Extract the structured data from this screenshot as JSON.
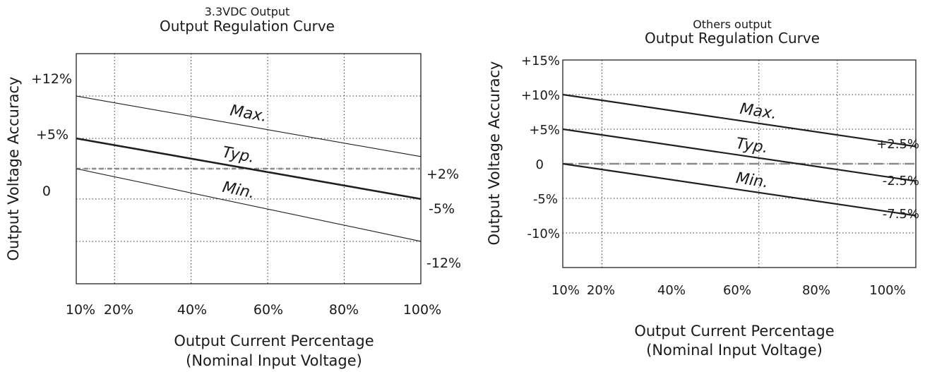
{
  "colors": {
    "line": "#1f1f1f",
    "dashed": "#8a8a8a",
    "grid": "#333333"
  },
  "charts": [
    {
      "title_line1": "3.3VDC Output",
      "title_line2": "Output Regulation Curve",
      "ylabel": "Output Voltage Accuracy",
      "xlabel_line1": "Output Current Percentage",
      "xlabel_line2": "(Nominal Input Voltage)",
      "x_tick_labels": [
        "10%",
        "20%",
        "40%",
        "60%",
        "80%",
        "100%"
      ],
      "y_tick_labels": [
        "+12%",
        "+5%",
        "0"
      ],
      "right_labels": [
        "+2%",
        "-5%",
        "-12%"
      ]
    },
    {
      "title_line1": "Others output",
      "title_line2": "Output Regulation Curve",
      "ylabel": "Output Voltage Accuracy",
      "xlabel_line1": "Output Current Percentage",
      "xlabel_line2": "(Nominal Input Voltage)",
      "x_tick_labels": [
        "10%",
        "20%",
        "40%",
        "60%",
        "80%",
        "100%"
      ],
      "y_tick_labels": [
        "+15%",
        "+10%",
        "+5%",
        "0",
        "-5%",
        "-10%"
      ],
      "right_labels": [
        "+2.5%",
        "-2.5%",
        "-7.5%"
      ]
    }
  ],
  "chart_data": [
    {
      "type": "line",
      "title": "3.3VDC Output Output Regulation Curve",
      "xlabel": "Output Current Percentage (Nominal Input Voltage)",
      "ylabel": "Output Voltage Accuracy",
      "xlim": [
        10,
        100
      ],
      "ylim": [
        -19,
        19
      ],
      "grid": true,
      "x_ticks": [
        10,
        20,
        40,
        60,
        80,
        100
      ],
      "y_ticks": [
        12,
        5,
        0
      ],
      "series": [
        {
          "name": "Max.",
          "x": [
            10,
            100
          ],
          "y": [
            12,
            2
          ],
          "style": "solid-thin"
        },
        {
          "name": "Typ.",
          "x": [
            10,
            100
          ],
          "y": [
            5,
            -5
          ],
          "style": "solid-bold"
        },
        {
          "name": "Min.",
          "x": [
            10,
            100
          ],
          "y": [
            0,
            -12
          ],
          "style": "solid-thin"
        }
      ],
      "reference": {
        "y": 0,
        "style": "dashed"
      }
    },
    {
      "type": "line",
      "title": "Others output Output Regulation Curve",
      "xlabel": "Output Current Percentage (Nominal Input Voltage)",
      "ylabel": "Output Voltage Accuracy",
      "xlim": [
        10,
        100
      ],
      "ylim": [
        -15,
        15
      ],
      "grid": true,
      "x_ticks": [
        10,
        20,
        40,
        60,
        80,
        100
      ],
      "y_ticks": [
        15,
        10,
        5,
        0,
        -5,
        -10
      ],
      "series": [
        {
          "name": "Max.",
          "x": [
            10,
            100
          ],
          "y": [
            10,
            2.5
          ],
          "style": "solid-bold"
        },
        {
          "name": "Typ.",
          "x": [
            10,
            100
          ],
          "y": [
            5,
            -2.5
          ],
          "style": "solid-bold"
        },
        {
          "name": "Min.",
          "x": [
            10,
            100
          ],
          "y": [
            0,
            -7.5
          ],
          "style": "solid-bold"
        }
      ],
      "reference": {
        "y": 0,
        "style": "dashed"
      }
    }
  ]
}
